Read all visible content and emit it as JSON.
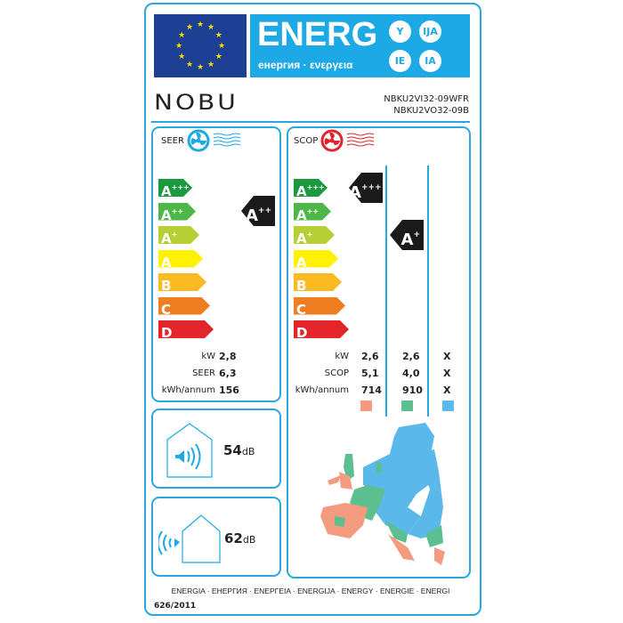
{
  "header": {
    "energ": "ENERG",
    "subtitle": "енергия · ενεργεια",
    "circles": [
      "Y",
      "IJA",
      "IE",
      "IA"
    ]
  },
  "brand": "NOBU",
  "models": [
    "NBKU2VI32-09WFR",
    "NBKU2VO32-09B"
  ],
  "classes": [
    {
      "l": "A",
      "s": "+++",
      "c": "#1a9a3e"
    },
    {
      "l": "A",
      "s": "++",
      "c": "#4db848"
    },
    {
      "l": "A",
      "s": "+",
      "c": "#b5cf34"
    },
    {
      "l": "A",
      "s": "",
      "c": "#fff200"
    },
    {
      "l": "B",
      "s": "",
      "c": "#fbb922"
    },
    {
      "l": "C",
      "s": "",
      "c": "#ef7d22"
    },
    {
      "l": "D",
      "s": "",
      "c": "#e3242b"
    }
  ],
  "seer": {
    "title": "SEER",
    "icon": "fan-cooling-icon",
    "rating": {
      "l": "A",
      "s": "++"
    },
    "rows": [
      {
        "label": "kW",
        "value": "2,8"
      },
      {
        "label": "SEER",
        "value": "6,3"
      },
      {
        "label": "kWh/annum",
        "value": "156"
      }
    ]
  },
  "scop": {
    "title": "SCOP",
    "icon": "fan-heating-icon",
    "ratings": [
      {
        "l": "A",
        "s": "+++"
      },
      {
        "l": "A",
        "s": "+"
      }
    ],
    "labels": [
      "kW",
      "SCOP",
      "kWh/annum"
    ],
    "columns": [
      {
        "values": [
          "2,6",
          "5,1",
          "714"
        ],
        "color": "#f39a7f"
      },
      {
        "values": [
          "2,6",
          "4,0",
          "910"
        ],
        "color": "#5cbf8f"
      },
      {
        "values": [
          "X",
          "X",
          "X"
        ],
        "color": "#5bb8ea"
      }
    ]
  },
  "noise": [
    {
      "value": "54",
      "unit": "dB",
      "icon": "indoor-sound-icon"
    },
    {
      "value": "62",
      "unit": "dB",
      "icon": "outdoor-sound-icon"
    }
  ],
  "footer": "ENERGIA · ЕНЕРГИЯ · ΕΝΕΡΓΕΙΑ · ENERGIJA · ENERGY · ENERGIE · ENERGI",
  "regulation": "626/2011"
}
